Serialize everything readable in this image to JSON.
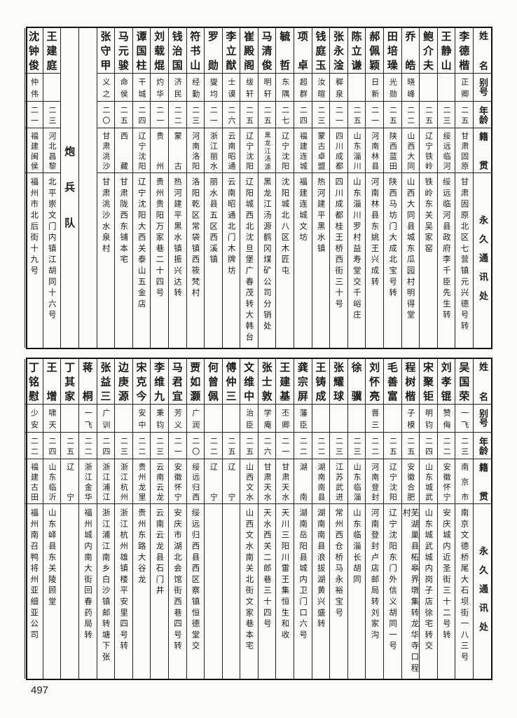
{
  "header": {
    "name": "姓名",
    "alias": "别号",
    "age": "年龄",
    "native": "籍贯",
    "address": "永久通讯处"
  },
  "top": {
    "rows": [
      {
        "name": "李德楷",
        "alias": "正卿",
        "age": "二五",
        "native": "甘肃固原",
        "address": "甘肃固原北区七营镇元兴德号转"
      },
      {
        "name": "王静山",
        "alias": "",
        "age": "二三",
        "native": "绥远临河",
        "address": "绥远临河县政府李千臣先生转"
      },
      {
        "name": "鲍介夫",
        "alias": "",
        "age": "二五",
        "native": "辽宁铁岭",
        "address": "铁岭东关吴家窑"
      },
      {
        "name": "乔皓",
        "alias": "晓峰",
        "age": "二二",
        "native": "山西大同",
        "address": "山西大同县城东瓜园村明得堂"
      },
      {
        "name": "田培璪",
        "alias": "光勋",
        "age": "二五",
        "native": "陕西蓝田",
        "address": "陕西马坊门大成北宝号转"
      },
      {
        "name": "郝佩颖",
        "alias": "日新",
        "age": "二一",
        "native": "河南林县",
        "address": "河南林县东姚王兴成转"
      },
      {
        "name": "陈立谦",
        "alias": "",
        "age": "二五",
        "native": "山东淄川",
        "address": "山东淄川罗村益寿堂交千峪庄"
      },
      {
        "name": "张永淦",
        "alias": "穉泉",
        "age": "二一",
        "native": "四川成都",
        "address": "四川成都桂王桥西街三十号"
      },
      {
        "name": "钱庭玉",
        "alias": "汝暄",
        "age": "二三",
        "native": "蒙古卓盟",
        "address": "热河建平黑水镇"
      },
      {
        "name": "项卓",
        "alias": "超群",
        "age": "二四",
        "native": "福建连城",
        "address": "福建连城文坊"
      },
      {
        "name": "毓哲",
        "alias": "东隅",
        "age": "二七",
        "native": "辽宁沈阳",
        "address": "沈阳城北八区木匠屯"
      },
      {
        "name": "马清俊",
        "alias": "明轩",
        "age": "二五",
        "native": "黑龙江汤源",
        "address": "黑龙江汤源鹤冈煤矿公司分销处"
      },
      {
        "name": "崔殿阁",
        "alias": "绂轩",
        "age": "二五",
        "native": "辽宁沈阳",
        "address": "辽阳城西北沈旦堡广春茂转大韩台"
      },
      {
        "name": "李立猷",
        "alias": "士谟",
        "age": "二六",
        "native": "云南昭通",
        "address": "云南昭通北门木牌坊"
      },
      {
        "name": "罗勋",
        "alias": "燮均",
        "age": "二一",
        "native": "浙江丽水",
        "address": "丽水县五区西溪镇"
      },
      {
        "name": "符书山",
        "alias": "经勤",
        "age": "二三",
        "native": "河南洛阳",
        "address": "洛阳乾区常袋镇西筱梵村"
      },
      {
        "name": "钱治国",
        "alias": "济民",
        "age": "二二",
        "native": "蒙古",
        "address": "热河建平黑水镇振兴达转"
      },
      {
        "name": "刘载焜",
        "alias": "灼华",
        "age": "二一",
        "native": "贵州",
        "address": "贵州贵阳万家巷二十四号"
      },
      {
        "name": "谭国柱",
        "alias": "干城",
        "age": "二四",
        "native": "辽宁沈阳",
        "address": "辽宁沈阳大西关泰山五金店"
      },
      {
        "name": "马元骏",
        "alias": "命侯",
        "age": "二五",
        "native": "西藏",
        "address": "甘肃陇西东铺本宅"
      },
      {
        "name": "张守甲",
        "alias": "义之",
        "age": "二〇",
        "native": "甘肃洮沙",
        "address": "甘肃洮沙水泉村"
      },
      {
        "blank": true
      },
      {
        "unit": "炮兵队"
      },
      {
        "name": "王建庭",
        "alias": "",
        "age": "二三",
        "native": "河北昌黎",
        "address": "北平崇文门内镇江胡同十六号"
      },
      {
        "name": "沈钟俊",
        "alias": "仲伟",
        "age": "二一",
        "native": "福建闽侯",
        "address": "福州市北后街十九号"
      }
    ]
  },
  "bottom": {
    "rows": [
      {
        "name": "吴国荣",
        "alias": "一飞",
        "age": "二三",
        "native": "南京市",
        "address": "南京文德桥尾大石坝街一八三号"
      },
      {
        "name": "刘孝锟",
        "alias": "赞侮",
        "age": "二二",
        "native": "安徽怀宁",
        "address": "安庆城内近圣街三十二号转"
      },
      {
        "name": "宋聚钜",
        "alias": "明钧",
        "age": "二四",
        "native": "山东城武",
        "address": "山东城武城内岗子店徐宅转交"
      },
      {
        "name": "程树楷",
        "alias": "子模",
        "age": "二五",
        "native": "安徽合肥",
        "address": "芜湖巢县柘皋界墩集转龙华寺口程村"
      },
      {
        "name": "毛善富",
        "alias": "",
        "age": "二五",
        "native": "辽宁沈阳",
        "address": "辽宁沈阳东门外信义胡同一号"
      },
      {
        "name": "刘怀亮",
        "alias": "晋三",
        "age": "二二",
        "native": "河南登封",
        "address": "河南登封卢店邮局转刘家沟"
      },
      {
        "name": "徐骥",
        "alias": "",
        "age": "二三",
        "native": "山东临淄",
        "address": "山东临淄长胡同"
      },
      {
        "name": "张耀球",
        "alias": "",
        "age": "二三",
        "native": "江苏武进",
        "address": "常州西仓桥马永裕宝号"
      },
      {
        "name": "王铸成",
        "alias": "",
        "age": "二二",
        "native": "湖南南县",
        "address": "湖南南县浪拔湖黄兴盛转"
      },
      {
        "name": "龚宗屏",
        "alias": "藩臣",
        "age": "二二",
        "native": "湖南",
        "address": "湖南岳阳县城内卫门口六号"
      },
      {
        "name": "王建基",
        "alias": "丕卿",
        "age": "二一",
        "native": "甘肃天水",
        "address": "天川三阳川雷王集恒生和收"
      },
      {
        "name": "张士敦",
        "alias": "学庵",
        "age": "二六",
        "native": "甘肃天水",
        "address": "天水西关二郎巷三十四号"
      },
      {
        "name": "文维中",
        "alias": "治臣",
        "age": "二五",
        "native": "山西文水",
        "address": "山西文水南关北街文家巷本宅"
      },
      {
        "name": "傅仲三",
        "alias": "",
        "age": "二五",
        "native": "辽宁",
        "address": ""
      },
      {
        "name": "何曾佩",
        "alias": "",
        "age": "二二",
        "native": "辽宁",
        "address": ""
      },
      {
        "name": "贾如灏",
        "alias": "广润",
        "age": "二〇",
        "native": "绥远归西",
        "address": "绥远归西县西区察镇恒德堂交"
      },
      {
        "name": "马君宜",
        "alias": "芳义",
        "age": "二一",
        "native": "安徽怀宁",
        "address": "安庆市湖北会馆街西巷四号转"
      },
      {
        "name": "李维九",
        "alias": "秉钧",
        "age": "二三",
        "native": "云南云龙",
        "address": "云南云龙县石门井"
      },
      {
        "name": "宋克今",
        "alias": "安中",
        "age": "二二",
        "native": "贵州龙里",
        "address": "贵州东路大谷龙"
      },
      {
        "name": "边庚源",
        "alias": "",
        "age": "二三",
        "native": "浙江杭州",
        "address": "浙江杭州雄镇楼平安里四号转"
      },
      {
        "name": "张益三",
        "alias": "广训",
        "age": "二四",
        "native": "浙江浦江",
        "address": "浙江浦江南乡白沙镇邮转塘下张"
      },
      {
        "name": "蒋桐",
        "alias": "一飞",
        "age": "二二",
        "native": "浙江金华",
        "address": "福州城内南大街回春药局转"
      },
      {
        "name": "丁其家",
        "alias": "",
        "age": "二五",
        "native": "辽宁",
        "address": ""
      },
      {
        "name": "王增",
        "alias": "啸天",
        "age": "二四",
        "native": "山东临沂",
        "address": "山东峄县东关陵顾堂"
      },
      {
        "name": "丁铭慰",
        "alias": "少安",
        "age": "二二",
        "native": "福建古田",
        "address": "福州南召鸭将州亚细亚公司"
      }
    ]
  },
  "page_number": "497"
}
